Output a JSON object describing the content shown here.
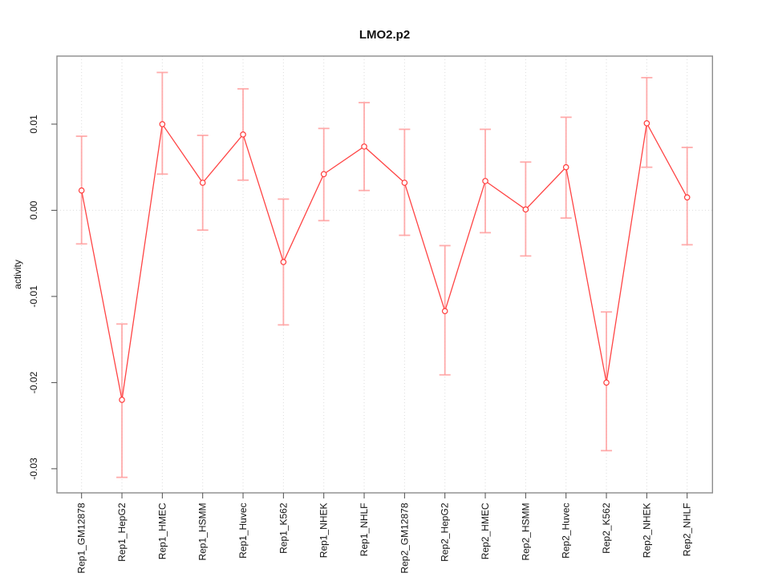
{
  "chart_data": {
    "type": "line",
    "title": "LMO2.p2",
    "xlabel": "",
    "ylabel": "activity",
    "categories": [
      "Rep1_GM12878",
      "Rep1_HepG2",
      "Rep1_HMEC",
      "Rep1_HSMM",
      "Rep1_Huvec",
      "Rep1_K562",
      "Rep1_NHEK",
      "Rep1_NHLF",
      "Rep2_GM12878",
      "Rep2_HepG2",
      "Rep2_HMEC",
      "Rep2_HSMM",
      "Rep2_Huvec",
      "Rep2_K562",
      "Rep2_NHEK",
      "Rep2_NHLF"
    ],
    "series": [
      {
        "name": "activity",
        "marker": "open-circle",
        "values": [
          0.0023,
          -0.022,
          0.01,
          0.0032,
          0.0088,
          -0.006,
          0.0042,
          0.0074,
          0.0032,
          -0.0117,
          0.0034,
          0.0001,
          0.005,
          -0.02,
          0.0101,
          0.0015
        ],
        "err_high": [
          0.0086,
          -0.0132,
          0.016,
          0.0087,
          0.0141,
          0.0013,
          0.0095,
          0.0125,
          0.0094,
          -0.0041,
          0.0094,
          0.0056,
          0.0108,
          -0.0118,
          0.0154,
          0.0073
        ],
        "err_low": [
          -0.0039,
          -0.031,
          0.0042,
          -0.0023,
          0.0035,
          -0.0133,
          -0.0012,
          0.0023,
          -0.0029,
          -0.0191,
          -0.0026,
          -0.0053,
          -0.0009,
          -0.0279,
          0.005,
          -0.004
        ]
      }
    ],
    "ytick_values": [
      0.01,
      0.0,
      -0.01,
      -0.02,
      -0.03
    ],
    "ytick_labels": [
      "0.01",
      "0.00",
      "-0.01",
      "-0.02",
      "-0.03"
    ],
    "ylim": [
      -0.0328,
      0.0179
    ],
    "grid": {
      "vertical_dotted_per_category": true,
      "zero_line_dotted": true
    },
    "legend": "none",
    "colors": {
      "line": "#ff4444",
      "point_stroke": "#ff3b3b",
      "error_bar": "#ff9e9e",
      "gridline": "#dcdcdc",
      "box": "#8c8c8c",
      "tick": "#4d4d4d",
      "text": "#111111"
    }
  }
}
